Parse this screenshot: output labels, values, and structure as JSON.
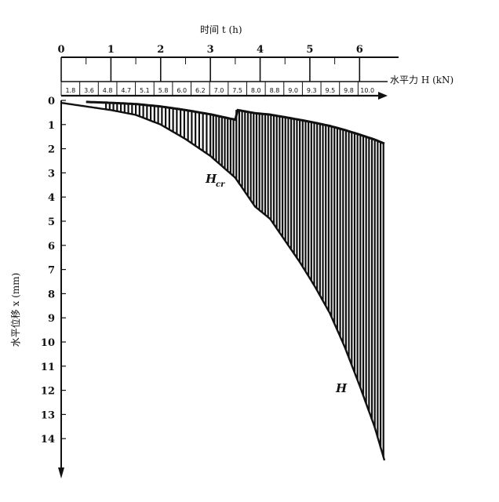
{
  "chart_data": {
    "type": "line",
    "top_axis": {
      "label": "时间 t (h)",
      "range": [
        0,
        6.5
      ],
      "ticks": [
        0,
        1,
        2,
        3,
        4,
        5,
        6
      ]
    },
    "load_axis": {
      "label": "水平力 H (kN)",
      "steps": [
        "1.8",
        "3.6",
        "4.8",
        "4.7",
        "5.1",
        "5.8",
        "6.0",
        "6.2",
        "7.0",
        "7.5",
        "8.0",
        "8.8",
        "9.0",
        "9.3",
        "9.5",
        "9.8",
        "10.0"
      ]
    },
    "y_axis": {
      "label": "水平位移 x (mm)",
      "range": [
        0,
        15
      ],
      "ticks": [
        "0",
        "1",
        "2",
        "3",
        "4",
        "5",
        "6",
        "7",
        "8",
        "9",
        "10",
        "11",
        "12",
        "13",
        "14"
      ],
      "inverted": true
    },
    "annotations": [
      "H_cr",
      "H"
    ],
    "series": [
      {
        "x": [
          0,
          0.5,
          1.0,
          1.5,
          2.0,
          2.5,
          3.0,
          3.5,
          3.9,
          4.2,
          4.5,
          4.8,
          5.1,
          5.4,
          5.7,
          6.0,
          6.3,
          6.5
        ],
        "y": [
          0.1,
          0.25,
          0.4,
          0.6,
          1.0,
          1.6,
          2.3,
          3.2,
          4.4,
          4.9,
          5.8,
          6.7,
          7.7,
          8.8,
          10.2,
          11.8,
          13.5,
          14.9
        ]
      }
    ],
    "grid": false
  }
}
